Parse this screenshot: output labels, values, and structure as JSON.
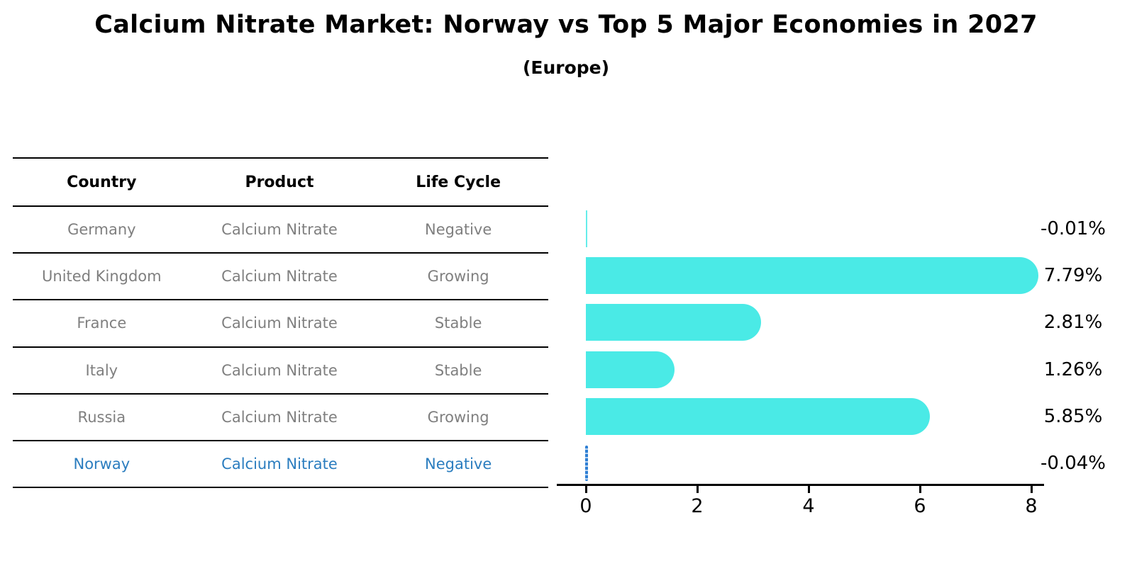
{
  "title": "Calcium Nitrate Market: Norway vs Top 5 Major Economies in 2027",
  "subtitle": "(Europe)",
  "table": {
    "headers": [
      "Country",
      "Product",
      "Life Cycle"
    ],
    "rows": [
      {
        "country": "Germany",
        "product": "Calcium Nitrate",
        "life_cycle": "Negative",
        "highlight": false
      },
      {
        "country": "United Kingdom",
        "product": "Calcium Nitrate",
        "life_cycle": "Growing",
        "highlight": false
      },
      {
        "country": "France",
        "product": "Calcium Nitrate",
        "life_cycle": "Stable",
        "highlight": false
      },
      {
        "country": "Italy",
        "product": "Calcium Nitrate",
        "life_cycle": "Stable",
        "highlight": false
      },
      {
        "country": "Russia",
        "product": "Calcium Nitrate",
        "life_cycle": "Growing",
        "highlight": false
      },
      {
        "country": "Norway",
        "product": "Calcium Nitrate",
        "life_cycle": "Negative",
        "highlight": true
      }
    ]
  },
  "chart_data": {
    "type": "bar",
    "orientation": "horizontal",
    "title": "Calcium Nitrate Market: Norway vs Top 5 Major Economies in 2027",
    "subtitle": "(Europe)",
    "categories": [
      "Germany",
      "United Kingdom",
      "France",
      "Italy",
      "Russia",
      "Norway"
    ],
    "values": [
      -0.01,
      7.79,
      2.81,
      1.26,
      5.85,
      -0.04
    ],
    "value_labels": [
      "-0.01%",
      "7.79%",
      "2.81%",
      "1.26%",
      "5.85%",
      "-0.04%"
    ],
    "xlim": [
      0,
      8
    ],
    "x_ticks": [
      0,
      2,
      4,
      6,
      8
    ],
    "grid": false,
    "legend": "none",
    "value_label_position": "right",
    "bar_color": "#4AEAE6",
    "highlight_index": 5,
    "highlight_color": "#2E7FD4"
  },
  "colors": {
    "bar": "#4AEAE6",
    "row_text": "#7F7F7F",
    "highlight_text": "#2B7DBF",
    "highlight_marker": "#2E7FD4",
    "axis": "#000000",
    "title_text": "#000000"
  }
}
